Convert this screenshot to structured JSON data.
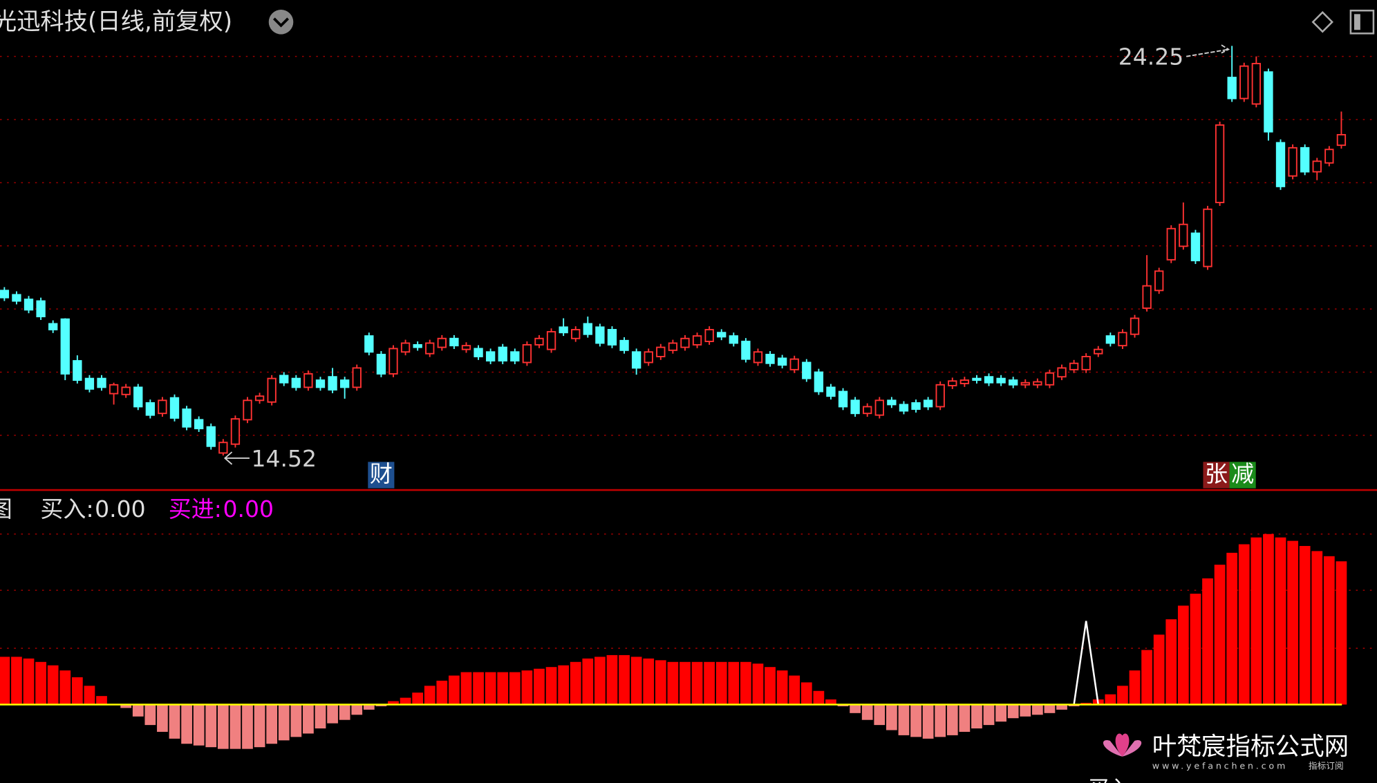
{
  "chart_data": [
    {
      "type": "candlestick",
      "title": "光迅科技(日线,前复权)",
      "up_color": "#ff3232",
      "down_color": "#54ffff",
      "ylim": [
        13.7,
        25.34
      ],
      "grid": true,
      "grid_color": "#a00000",
      "grid_values": [
        15,
        16.5,
        18,
        19.5,
        21,
        22.5,
        24
      ],
      "annotations": [
        {
          "value": 24.25,
          "kind": "high"
        },
        {
          "value": 14.52,
          "kind": "low"
        }
      ],
      "ohlc": [
        [
          18.44,
          18.52,
          18.19,
          18.27
        ],
        [
          18.34,
          18.42,
          18.11,
          18.19
        ],
        [
          18.23,
          18.31,
          17.9,
          17.98
        ],
        [
          18.19,
          18.27,
          17.74,
          17.82
        ],
        [
          17.65,
          17.73,
          17.43,
          17.51
        ],
        [
          17.76,
          17.78,
          16.31,
          16.46
        ],
        [
          16.77,
          16.9,
          16.23,
          16.31
        ],
        [
          16.35,
          16.43,
          16.02,
          16.1
        ],
        [
          16.35,
          16.43,
          16.06,
          16.14
        ],
        [
          15.99,
          16.25,
          15.73,
          16.2
        ],
        [
          15.97,
          16.22,
          15.89,
          16.14
        ],
        [
          16.14,
          16.22,
          15.6,
          15.68
        ],
        [
          15.77,
          15.85,
          15.4,
          15.48
        ],
        [
          15.52,
          15.91,
          15.44,
          15.83
        ],
        [
          15.89,
          15.97,
          15.33,
          15.41
        ],
        [
          15.62,
          15.7,
          15.12,
          15.2
        ],
        [
          15.37,
          15.45,
          15.08,
          15.16
        ],
        [
          15.2,
          15.28,
          14.66,
          14.74
        ],
        [
          14.58,
          14.91,
          14.52,
          14.83
        ],
        [
          14.79,
          15.47,
          14.71,
          15.39
        ],
        [
          15.37,
          15.91,
          15.29,
          15.83
        ],
        [
          15.83,
          16.01,
          15.75,
          15.93
        ],
        [
          15.79,
          16.43,
          15.71,
          16.35
        ],
        [
          16.42,
          16.5,
          16.17,
          16.25
        ],
        [
          16.35,
          16.43,
          16.06,
          16.14
        ],
        [
          16.14,
          16.54,
          16.06,
          16.46
        ],
        [
          16.31,
          16.39,
          16.06,
          16.14
        ],
        [
          16.39,
          16.6,
          16.0,
          16.08
        ],
        [
          16.31,
          16.39,
          15.87,
          16.14
        ],
        [
          16.14,
          16.68,
          16.06,
          16.6
        ],
        [
          17.36,
          17.44,
          16.9,
          16.98
        ],
        [
          16.92,
          17.0,
          16.38,
          16.46
        ],
        [
          16.46,
          17.14,
          16.38,
          17.06
        ],
        [
          16.98,
          17.27,
          16.9,
          17.19
        ],
        [
          17.15,
          17.23,
          17.01,
          17.09
        ],
        [
          16.94,
          17.27,
          16.86,
          17.19
        ],
        [
          17.09,
          17.38,
          17.01,
          17.3
        ],
        [
          17.3,
          17.38,
          17.05,
          17.13
        ],
        [
          17.04,
          17.21,
          16.96,
          17.13
        ],
        [
          17.06,
          17.14,
          16.79,
          16.87
        ],
        [
          16.98,
          17.06,
          16.69,
          16.77
        ],
        [
          17.09,
          17.17,
          16.69,
          16.77
        ],
        [
          16.98,
          17.06,
          16.69,
          16.77
        ],
        [
          16.73,
          17.23,
          16.65,
          17.15
        ],
        [
          17.15,
          17.38,
          17.07,
          17.3
        ],
        [
          17.04,
          17.54,
          16.96,
          17.46
        ],
        [
          17.57,
          17.78,
          17.36,
          17.44
        ],
        [
          17.3,
          17.59,
          17.22,
          17.51
        ],
        [
          17.65,
          17.82,
          17.32,
          17.4
        ],
        [
          17.57,
          17.65,
          17.11,
          17.19
        ],
        [
          17.51,
          17.59,
          17.07,
          17.15
        ],
        [
          17.25,
          17.33,
          16.94,
          17.02
        ],
        [
          16.98,
          17.06,
          16.44,
          16.6
        ],
        [
          16.73,
          17.06,
          16.65,
          16.98
        ],
        [
          16.87,
          17.17,
          16.79,
          17.09
        ],
        [
          17.02,
          17.27,
          16.94,
          17.19
        ],
        [
          17.09,
          17.38,
          17.01,
          17.3
        ],
        [
          17.15,
          17.44,
          17.07,
          17.36
        ],
        [
          17.23,
          17.59,
          17.15,
          17.51
        ],
        [
          17.44,
          17.52,
          17.26,
          17.34
        ],
        [
          17.36,
          17.44,
          17.11,
          17.19
        ],
        [
          17.23,
          17.31,
          16.73,
          16.81
        ],
        [
          16.73,
          17.06,
          16.65,
          16.98
        ],
        [
          16.92,
          17.0,
          16.63,
          16.71
        ],
        [
          16.83,
          16.91,
          16.59,
          16.67
        ],
        [
          16.56,
          16.89,
          16.48,
          16.81
        ],
        [
          16.73,
          16.81,
          16.27,
          16.35
        ],
        [
          16.5,
          16.58,
          15.96,
          16.04
        ],
        [
          16.14,
          16.22,
          15.85,
          15.93
        ],
        [
          16.04,
          16.12,
          15.6,
          15.68
        ],
        [
          15.83,
          15.91,
          15.44,
          15.52
        ],
        [
          15.52,
          15.76,
          15.44,
          15.68
        ],
        [
          15.48,
          15.91,
          15.4,
          15.83
        ],
        [
          15.83,
          15.91,
          15.65,
          15.73
        ],
        [
          15.73,
          15.81,
          15.5,
          15.58
        ],
        [
          15.77,
          15.85,
          15.54,
          15.62
        ],
        [
          15.83,
          15.91,
          15.6,
          15.68
        ],
        [
          15.68,
          16.28,
          15.6,
          16.2
        ],
        [
          16.18,
          16.37,
          16.1,
          16.29
        ],
        [
          16.23,
          16.39,
          16.15,
          16.31
        ],
        [
          16.35,
          16.43,
          16.23,
          16.31
        ],
        [
          16.39,
          16.47,
          16.17,
          16.25
        ],
        [
          16.35,
          16.43,
          16.17,
          16.25
        ],
        [
          16.31,
          16.39,
          16.12,
          16.2
        ],
        [
          16.2,
          16.33,
          16.12,
          16.25
        ],
        [
          16.2,
          16.35,
          16.12,
          16.27
        ],
        [
          16.2,
          16.56,
          16.12,
          16.48
        ],
        [
          16.39,
          16.68,
          16.31,
          16.6
        ],
        [
          16.56,
          16.79,
          16.48,
          16.71
        ],
        [
          16.56,
          16.95,
          16.48,
          16.87
        ],
        [
          16.94,
          17.12,
          16.86,
          17.04
        ],
        [
          17.36,
          17.44,
          17.11,
          17.19
        ],
        [
          17.13,
          17.52,
          17.05,
          17.44
        ],
        [
          17.4,
          17.86,
          17.32,
          17.78
        ],
        [
          18.02,
          19.28,
          17.94,
          18.55
        ],
        [
          18.44,
          18.98,
          18.36,
          18.9
        ],
        [
          19.17,
          19.99,
          19.09,
          19.91
        ],
        [
          19.49,
          20.53,
          19.41,
          20.01
        ],
        [
          19.8,
          19.88,
          19.07,
          19.15
        ],
        [
          19.01,
          20.45,
          18.93,
          20.37
        ],
        [
          20.53,
          22.45,
          20.45,
          22.37
        ],
        [
          23.5,
          24.25,
          22.92,
          23.0
        ],
        [
          23.0,
          23.85,
          22.92,
          23.77
        ],
        [
          22.87,
          24.0,
          22.79,
          23.83
        ],
        [
          23.63,
          23.71,
          22.0,
          22.21
        ],
        [
          21.95,
          22.03,
          20.83,
          20.91
        ],
        [
          21.16,
          21.91,
          21.08,
          21.83
        ],
        [
          21.83,
          21.91,
          21.18,
          21.26
        ],
        [
          21.26,
          21.59,
          21.06,
          21.51
        ],
        [
          21.47,
          21.87,
          21.39,
          21.79
        ],
        [
          21.89,
          22.69,
          21.81,
          22.14
        ]
      ]
    },
    {
      "type": "bar",
      "panel_label": "图",
      "ylim": [
        -46,
        125.8
      ],
      "grid": true,
      "grid_values": [
        33,
        67,
        100
      ],
      "zero_color": "#ffff00",
      "bars": {
        "up_color": "#ff0000",
        "down_color": "#f08080",
        "values": [
          28,
          28,
          27,
          25,
          23,
          20,
          16,
          11,
          5,
          0,
          -2,
          -7,
          -12,
          -16,
          -20,
          -23,
          -24,
          -25,
          -26,
          -26,
          -26,
          -25,
          -23,
          -21,
          -19,
          -17,
          -14,
          -11,
          -9,
          -6,
          -3,
          -1,
          2,
          4,
          7,
          11,
          14,
          17,
          19,
          19,
          19,
          19,
          19,
          20,
          21,
          22,
          23,
          25,
          27,
          28,
          29,
          29,
          28,
          27,
          26,
          25,
          25,
          25,
          25,
          25,
          25,
          25,
          24,
          22,
          20,
          17,
          13,
          8,
          3,
          -1,
          -5,
          -9,
          -12,
          -15,
          -18,
          -19,
          -20,
          -19,
          -18,
          -16,
          -14,
          -12,
          -10,
          -8,
          -7,
          -6,
          -5,
          -3,
          -1,
          1,
          3,
          6,
          11,
          20,
          32,
          41,
          50,
          58,
          65,
          74,
          82,
          89,
          94,
          98,
          100,
          98,
          96,
          93,
          90,
          87,
          84
        ]
      },
      "series": [
        {
          "name": "买入",
          "color": "#ffffff",
          "current": "0.00",
          "values": [
            null,
            null,
            null,
            null,
            null,
            null,
            null,
            null,
            null,
            null,
            null,
            null,
            null,
            null,
            null,
            null,
            null,
            null,
            null,
            null,
            null,
            null,
            null,
            null,
            null,
            null,
            null,
            null,
            null,
            null,
            null,
            null,
            null,
            null,
            null,
            null,
            null,
            null,
            null,
            null,
            null,
            null,
            null,
            null,
            null,
            null,
            null,
            null,
            null,
            null,
            null,
            null,
            null,
            null,
            null,
            null,
            null,
            null,
            null,
            null,
            null,
            null,
            null,
            null,
            null,
            null,
            null,
            null,
            null,
            null,
            null,
            null,
            null,
            null,
            null,
            null,
            null,
            null,
            null,
            null,
            null,
            null,
            null,
            null,
            null,
            null,
            null,
            null,
            0,
            49,
            0,
            null,
            null,
            null,
            null,
            null,
            null,
            null,
            null,
            null,
            null,
            null,
            null,
            null,
            null,
            null,
            null,
            null,
            null,
            null,
            null
          ]
        },
        {
          "name": "买进",
          "color": "#ff00ff",
          "current": "0.00"
        }
      ]
    }
  ],
  "markers": [
    {
      "text": "财",
      "color": "#1e4f8f"
    },
    {
      "text": "张",
      "color": "#8b1a1a"
    },
    {
      "text": "减",
      "color": "#1a8b1a"
    }
  ],
  "watermark": {
    "title": "叶梵宸指标公式网",
    "url": "www.yefanchen.com",
    "tag": "指标订阅"
  }
}
